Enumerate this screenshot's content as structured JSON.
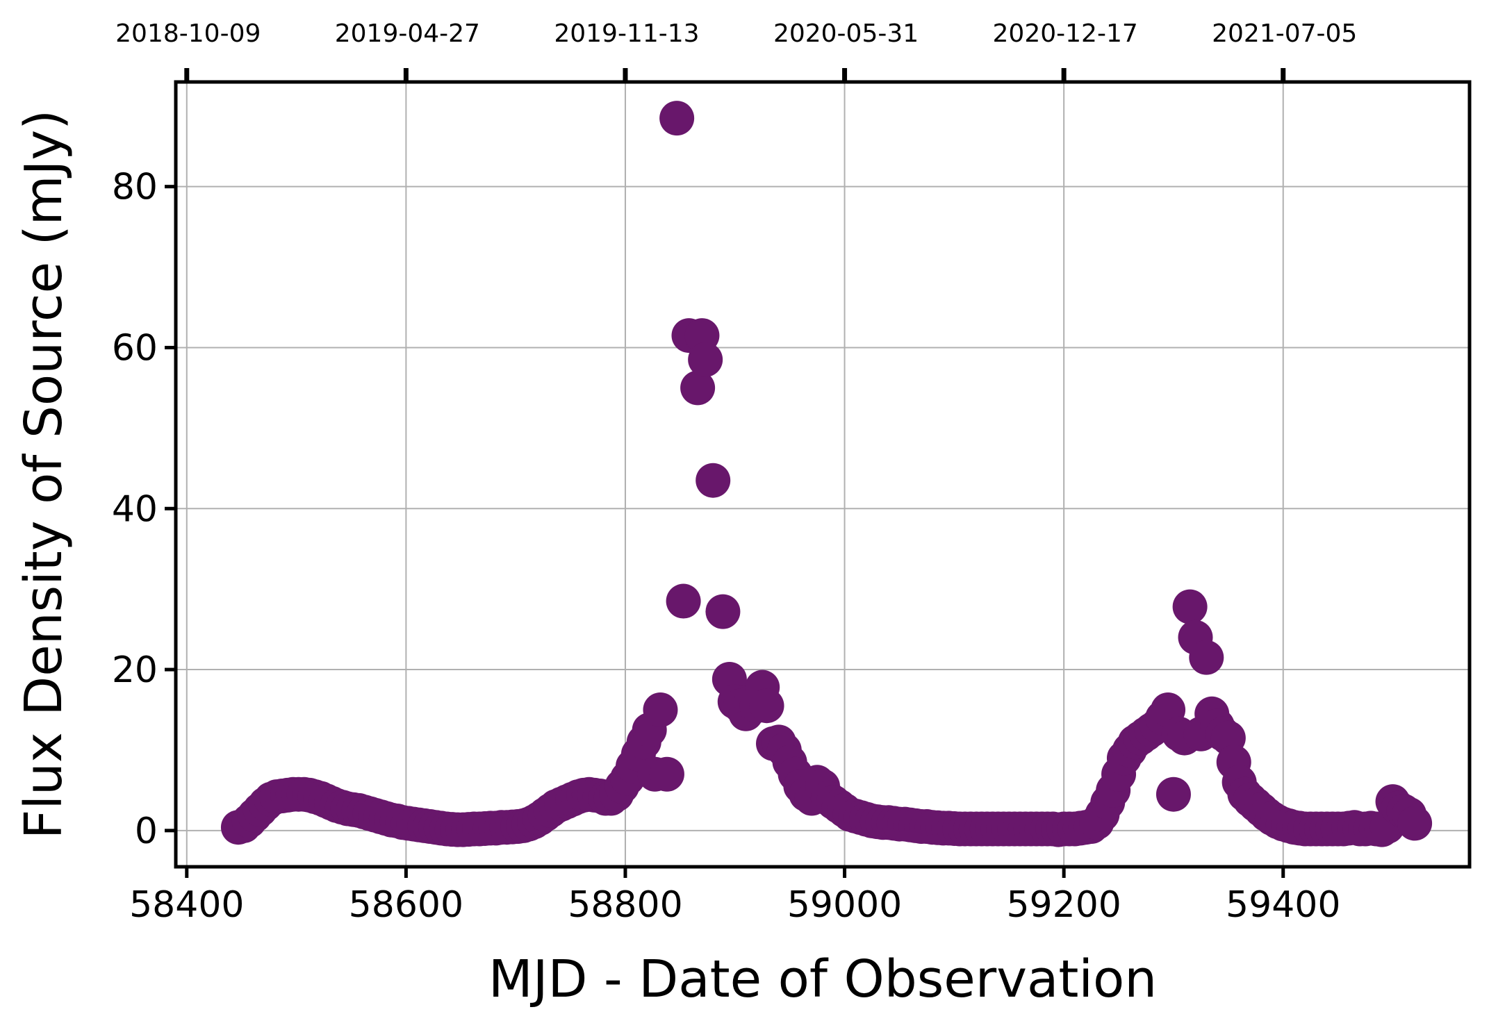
{
  "chart_data": {
    "type": "scatter",
    "xlabel": "MJD - Date of Observation",
    "ylabel": "Flux Density of Source (mJy)",
    "xlim": [
      58390,
      59570
    ],
    "ylim": [
      -4.5,
      93
    ],
    "x_ticks": [
      58400,
      58600,
      58800,
      59000,
      59200,
      59400
    ],
    "y_ticks": [
      0,
      20,
      40,
      60,
      80
    ],
    "top_axis": {
      "ticks": [
        58400,
        58600,
        58800,
        59000,
        59200,
        59400
      ],
      "labels": [
        "2018-10-09",
        "2019-04-27",
        "2019-11-13",
        "2020-05-31",
        "2020-12-17",
        "2021-07-05"
      ]
    },
    "grid": true,
    "marker_color": "#68176b",
    "series": [
      {
        "x": [
          58447,
          58452,
          58457,
          58462,
          58467,
          58472,
          58477,
          58482,
          58487,
          58492,
          58497,
          58502,
          58507,
          58512,
          58517,
          58522,
          58527,
          58532,
          58537,
          58542,
          58547,
          58552,
          58557,
          58562,
          58567,
          58572,
          58577,
          58582,
          58587,
          58592,
          58597,
          58602,
          58607,
          58612,
          58617,
          58622,
          58627,
          58632,
          58637,
          58642,
          58647,
          58652,
          58657,
          58662,
          58667,
          58672,
          58677,
          58682,
          58687,
          58692,
          58697,
          58702,
          58707,
          58712,
          58717,
          58722,
          58727,
          58732,
          58737,
          58742,
          58747,
          58752,
          58757,
          58762,
          58767,
          58772,
          58777,
          58782,
          58787,
          58792,
          58797,
          58802,
          58807,
          58812,
          58817,
          58822,
          58827,
          58832,
          58838,
          58847,
          58853,
          58858,
          58866,
          58870,
          58873,
          58880,
          58889,
          58895,
          58900,
          58905,
          58910,
          58915,
          58920,
          58925,
          58929,
          58935,
          58940,
          58945,
          58950,
          58955,
          58960,
          58965,
          58970,
          58975,
          58980,
          58985,
          58990,
          58995,
          59000,
          59005,
          59010,
          59015,
          59020,
          59025,
          59030,
          59035,
          59040,
          59045,
          59050,
          59055,
          59060,
          59065,
          59070,
          59075,
          59080,
          59085,
          59090,
          59095,
          59100,
          59105,
          59110,
          59115,
          59120,
          59125,
          59130,
          59135,
          59140,
          59145,
          59150,
          59155,
          59160,
          59165,
          59170,
          59175,
          59180,
          59185,
          59190,
          59195,
          59200,
          59205,
          59210,
          59215,
          59220,
          59225,
          59230,
          59235,
          59240,
          59245,
          59250,
          59255,
          59260,
          59265,
          59270,
          59275,
          59280,
          59285,
          59290,
          59295,
          59300,
          59305,
          59310,
          59315,
          59320,
          59325,
          59330,
          59335,
          59340,
          59345,
          59350,
          59355,
          59360,
          59365,
          59370,
          59375,
          59380,
          59385,
          59390,
          59395,
          59400,
          59405,
          59410,
          59415,
          59420,
          59425,
          59430,
          59435,
          59440,
          59445,
          59450,
          59455,
          59460,
          59465,
          59470,
          59475,
          59480,
          59485,
          59490,
          59495,
          59500,
          59505,
          59510,
          59515,
          59520
        ],
        "y": [
          0.4,
          0.6,
          1.2,
          1.9,
          2.6,
          3.3,
          3.9,
          4.2,
          4.3,
          4.4,
          4.5,
          4.5,
          4.5,
          4.4,
          4.2,
          4.0,
          3.7,
          3.4,
          3.1,
          2.9,
          2.7,
          2.6,
          2.5,
          2.3,
          2.1,
          1.9,
          1.7,
          1.5,
          1.3,
          1.2,
          1.0,
          0.9,
          0.8,
          0.7,
          0.6,
          0.5,
          0.4,
          0.3,
          0.2,
          0.15,
          0.1,
          0.1,
          0.15,
          0.2,
          0.2,
          0.25,
          0.3,
          0.3,
          0.4,
          0.4,
          0.45,
          0.5,
          0.6,
          0.8,
          1.1,
          1.5,
          2.0,
          2.5,
          3.0,
          3.3,
          3.6,
          3.9,
          4.2,
          4.4,
          4.5,
          4.4,
          4.3,
          4.0,
          4.0,
          4.5,
          5.5,
          6.5,
          8.0,
          9.5,
          11.0,
          12.5,
          7.0,
          15.0,
          7.0,
          88.5,
          28.5,
          61.5,
          55.0,
          61.5,
          58.5,
          43.5,
          27.2,
          18.8,
          16.0,
          15.5,
          14.5,
          16.0,
          15.5,
          17.8,
          15.5,
          10.8,
          11.0,
          10.0,
          8.5,
          7.0,
          5.5,
          4.5,
          4.0,
          6.0,
          5.5,
          4.0,
          3.5,
          3.0,
          2.5,
          2.0,
          1.8,
          1.6,
          1.4,
          1.2,
          1.1,
          1.0,
          1.0,
          0.9,
          0.8,
          0.8,
          0.7,
          0.6,
          0.5,
          0.5,
          0.4,
          0.35,
          0.3,
          0.3,
          0.25,
          0.2,
          0.2,
          0.2,
          0.2,
          0.2,
          0.2,
          0.2,
          0.2,
          0.2,
          0.2,
          0.2,
          0.2,
          0.2,
          0.2,
          0.2,
          0.2,
          0.2,
          0.2,
          0.1,
          0.2,
          0.2,
          0.2,
          0.3,
          0.4,
          0.5,
          1.0,
          2.0,
          3.5,
          5.0,
          7.0,
          9.0,
          10.0,
          11.0,
          11.5,
          12.0,
          12.5,
          13.0,
          14.0,
          15.0,
          4.5,
          12.0,
          11.5,
          27.8,
          24.0,
          12.0,
          21.5,
          14.5,
          13.0,
          12.0,
          11.5,
          8.5,
          6.0,
          4.5,
          3.8,
          3.2,
          2.6,
          2.0,
          1.5,
          1.1,
          0.8,
          0.6,
          0.4,
          0.3,
          0.2,
          0.2,
          0.2,
          0.2,
          0.2,
          0.2,
          0.2,
          0.2,
          0.3,
          0.4,
          0.2,
          0.2,
          0.3,
          0.2,
          0.1,
          0.5,
          3.6,
          2.8,
          2.4,
          2.0,
          0.9
        ]
      }
    ]
  }
}
